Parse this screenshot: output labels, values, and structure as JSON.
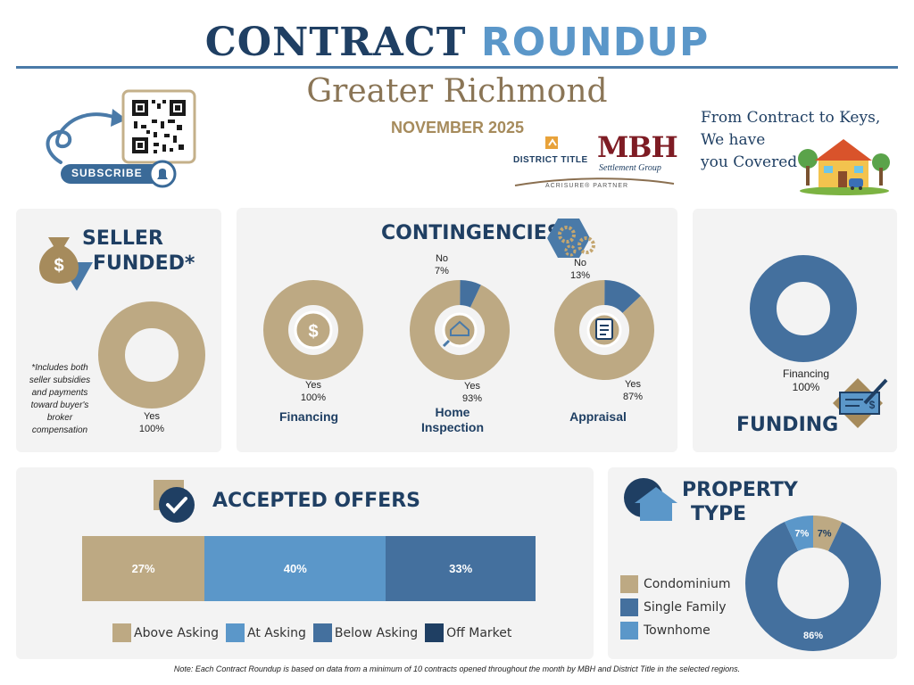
{
  "header": {
    "title_part1": "CONTRACT",
    "title_part2": "ROUNDUP",
    "region": "Greater Richmond",
    "month": "NOVEMBER 2025",
    "slogan_line1": "From Contract to Keys,",
    "slogan_line2": "We have",
    "slogan_line3": "you Covered",
    "subscribe_label": "SUBSCRIBE",
    "logo_district": "DISTRICT TITLE",
    "logo_mbh": "MBH",
    "logo_mbh_sub": "Settlement Group",
    "logo_partner": "ACRISURE® PARTNER"
  },
  "colors": {
    "tan": "#bda983",
    "mid_blue": "#44709e",
    "light_blue": "#5b97c9",
    "navy": "#1f3f63",
    "panel_bg": "#f3f3f3"
  },
  "seller": {
    "heading_line1": "SELLER",
    "heading_line2": "FUNDED*",
    "footnote_lines": [
      "*Includes both",
      "seller subsidies",
      "and payments",
      "toward buyer's",
      "broker",
      "compensation"
    ],
    "yes_label": "Yes",
    "yes_pct": "100%"
  },
  "contingencies": {
    "heading": "CONTINGENCIES",
    "items": [
      {
        "label": "Financing",
        "yes_label": "Yes",
        "yes_pct": "100%",
        "no_label": "",
        "no_pct": ""
      },
      {
        "label_line1": "Home",
        "label_line2": "Inspection",
        "yes_label": "Yes",
        "yes_pct": "93%",
        "no_label": "No",
        "no_pct": "7%"
      },
      {
        "label": "Appraisal",
        "yes_label": "Yes",
        "yes_pct": "87%",
        "no_label": "No",
        "no_pct": "13%"
      }
    ]
  },
  "funding": {
    "heading": "FUNDING",
    "label": "Financing",
    "pct": "100%"
  },
  "offers": {
    "heading": "ACCEPTED OFFERS",
    "segments": [
      {
        "label": "27%"
      },
      {
        "label": "40%"
      },
      {
        "label": "33%"
      }
    ],
    "legend": [
      "Above Asking",
      "At Asking",
      "Below Asking",
      "Off Market"
    ]
  },
  "property": {
    "heading_line1": "PROPERTY",
    "heading_line2": "TYPE",
    "legend": [
      "Condominium",
      "Single Family",
      "Townhome"
    ],
    "labels": [
      "7%",
      "86%",
      "7%"
    ]
  },
  "note": "Note: Each Contract Roundup is based on data from a minimum of 10 contracts opened throughout the month by MBH and District Title in the selected regions.",
  "chart_data": [
    {
      "type": "pie",
      "title": "SELLER FUNDED*",
      "categories": [
        "Yes"
      ],
      "values": [
        100
      ]
    },
    {
      "type": "pie",
      "title": "Financing",
      "categories": [
        "Yes"
      ],
      "values": [
        100
      ]
    },
    {
      "type": "pie",
      "title": "Home Inspection",
      "categories": [
        "Yes",
        "No"
      ],
      "values": [
        93,
        7
      ]
    },
    {
      "type": "pie",
      "title": "Appraisal",
      "categories": [
        "Yes",
        "No"
      ],
      "values": [
        87,
        13
      ]
    },
    {
      "type": "pie",
      "title": "FUNDING",
      "categories": [
        "Financing"
      ],
      "values": [
        100
      ]
    },
    {
      "type": "bar",
      "title": "ACCEPTED OFFERS",
      "categories": [
        "Above Asking",
        "At Asking",
        "Below Asking",
        "Off Market"
      ],
      "values": [
        27,
        40,
        33,
        0
      ],
      "stacked": true
    },
    {
      "type": "pie",
      "title": "PROPERTY TYPE",
      "categories": [
        "Condominium",
        "Single Family",
        "Townhome"
      ],
      "values": [
        7,
        86,
        7
      ]
    }
  ]
}
